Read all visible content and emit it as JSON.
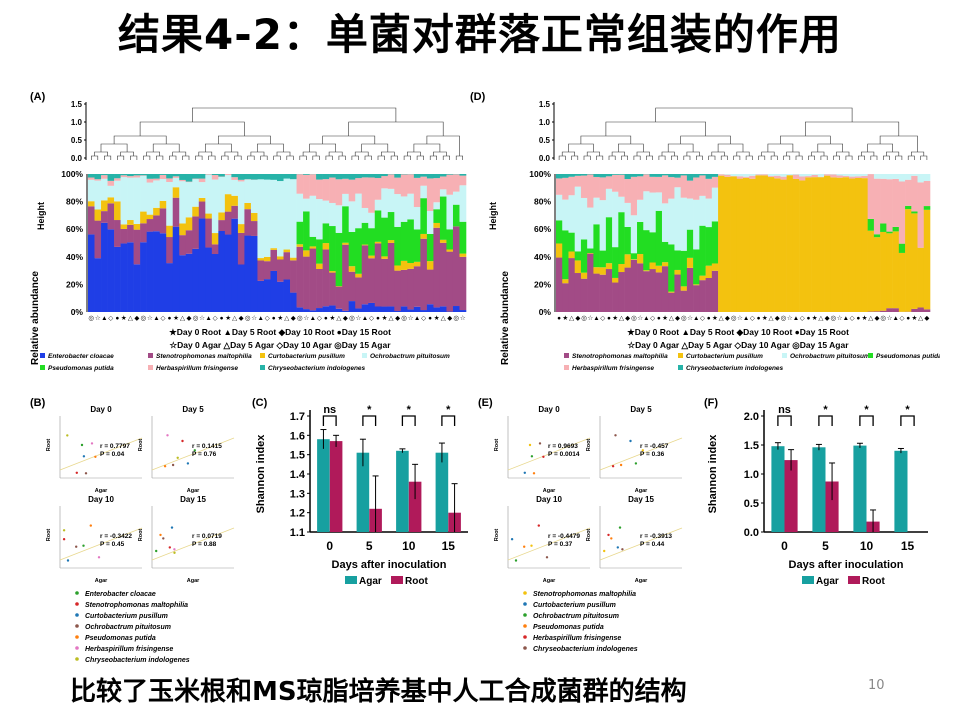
{
  "title": "结果4-2：单菌对群落正常组装的作用",
  "caption": "比较了玉米根和MS琼脂培养基中人工合成菌群的结构",
  "page_number": "10",
  "colors": {
    "enterobacter": "#1f3ee6",
    "stenotrophomonas": "#a24b86",
    "curtobacterium": "#f3c20f",
    "ochrobactrum": "#c8f5f6",
    "pseudomonas": "#22dd22",
    "herbaspirillum": "#f7b0b4",
    "chryseobacterium": "#27b3a8",
    "agar": "#17a0a0",
    "root": "#b01a5a"
  },
  "panelA": {
    "letter": "(A)",
    "height_label": "Height",
    "height_ticks": [
      "1.5",
      "1.0",
      "0.5",
      "0.0"
    ],
    "abundance_label": "Relative abundance",
    "y_ticks": [
      "100%",
      "80%",
      "60%",
      "40%",
      "20%",
      "0%"
    ],
    "legend_row1": "★Day 0 Root ▲Day 5 Root ◆Day 10 Root ●Day 15 Root",
    "legend_row2": "☆Day 0 Agar △Day 5 Agar ◇Day 10 Agar ◎Day 15 Agar",
    "species": [
      "Enterobacter cloacae",
      "Stenotrophomonas maltophilia",
      "Curtobacterium pusillum",
      "Ochrobactrum pituitosum",
      "Pseudomonas putida",
      "Herbaspirillum frisingense",
      "Chryseobacterium indologenes"
    ]
  },
  "panelD": {
    "letter": "(D)",
    "height_label": "Height",
    "height_ticks": [
      "1.5",
      "1.0",
      "0.5",
      "0.0"
    ],
    "abundance_label": "Relative abundance",
    "y_ticks": [
      "100%",
      "80%",
      "60%",
      "40%",
      "20%",
      "0%"
    ],
    "legend_row1": "★Day 0 Root ▲Day 5 Root ◆Day 10 Root ●Day 15 Root",
    "legend_row2": "☆Day 0 Agar △Day 5 Agar ◇Day 10 Agar ◎Day 15 Agar",
    "species": [
      "Stenotrophomonas maltophilia",
      "Curtobacterium pusillum",
      "Ochrobactrum pituitosum",
      "Pseudomonas putida",
      "Herbaspirillum frisingense",
      "Chryseobacterium indologenes"
    ]
  },
  "panelB": {
    "letter": "(B)",
    "x_label": "Agar",
    "y_label": "Root",
    "plots": [
      {
        "title": "Day 0",
        "r": "r = 0.7797",
        "p": "P = 0.04"
      },
      {
        "title": "Day 5",
        "r": "r = 0.1415",
        "p": "P = 0.76"
      },
      {
        "title": "Day 10",
        "r": "r = -0.3422",
        "p": "P = 0.45"
      },
      {
        "title": "Day 15",
        "r": "r = 0.0719",
        "p": "P = 0.88"
      }
    ],
    "legend": [
      "Enterobacter cloacae",
      "Stenotrophomonas maltophilia",
      "Curtobacterium pusillum",
      "Ochrobactrum pituitosum",
      "Pseudomonas putida",
      "Herbaspirillum frisingense",
      "Chryseobacterium indologenes"
    ]
  },
  "panelE": {
    "letter": "(E)",
    "x_label": "Agar",
    "y_label": "Root",
    "plots": [
      {
        "title": "Day 0",
        "r": "r = 0.9693",
        "p": "P = 0.0014"
      },
      {
        "title": "Day 5",
        "r": "r = -0.457",
        "p": "P = 0.36"
      },
      {
        "title": "Day 10",
        "r": "r = -0.4479",
        "p": "P = 0.37"
      },
      {
        "title": "Day 15",
        "r": "r = -0.3913",
        "p": "P = 0.44"
      }
    ],
    "legend": [
      "Stenotrophomonas maltophilia",
      "Curtobacterium pusillum",
      "Ochrobactrum pituitosum",
      "Pseudomonas putida",
      "Herbaspirillum frisingense",
      "Chryseobacterium indologenes"
    ]
  },
  "chart_data": [
    {
      "id": "C",
      "type": "bar",
      "title": "(C)",
      "xlabel": "Days after inoculation",
      "ylabel": "Shannon index",
      "categories": [
        "0",
        "5",
        "10",
        "15"
      ],
      "ylim": [
        1.1,
        1.7
      ],
      "y_ticks": [
        "1.7",
        "1.6",
        "1.5",
        "1.4",
        "1.3",
        "1.2",
        "1.1"
      ],
      "significance": [
        "ns",
        "*",
        "*",
        "*"
      ],
      "series": [
        {
          "name": "Agar",
          "values": [
            1.58,
            1.51,
            1.52,
            1.51
          ],
          "errors": [
            0.05,
            0.07,
            0.01,
            0.05
          ]
        },
        {
          "name": "Root",
          "values": [
            1.57,
            1.22,
            1.36,
            1.2
          ],
          "errors": [
            0.03,
            0.17,
            0.09,
            0.15
          ]
        }
      ]
    },
    {
      "id": "F",
      "type": "bar",
      "title": "(F)",
      "xlabel": "Days after inoculation",
      "ylabel": "Shannon index",
      "categories": [
        "0",
        "5",
        "10",
        "15"
      ],
      "ylim": [
        0.0,
        2.0
      ],
      "y_ticks": [
        "2.0",
        "1.5",
        "1.0",
        "0.5",
        "0.0"
      ],
      "significance": [
        "ns",
        "*",
        "*",
        "*"
      ],
      "series": [
        {
          "name": "Agar",
          "values": [
            1.48,
            1.46,
            1.49,
            1.4
          ],
          "errors": [
            0.06,
            0.05,
            0.04,
            0.04
          ]
        },
        {
          "name": "Root",
          "values": [
            1.24,
            0.87,
            0.18,
            0.0
          ],
          "errors": [
            0.18,
            0.32,
            0.2,
            0.0
          ]
        }
      ]
    }
  ]
}
